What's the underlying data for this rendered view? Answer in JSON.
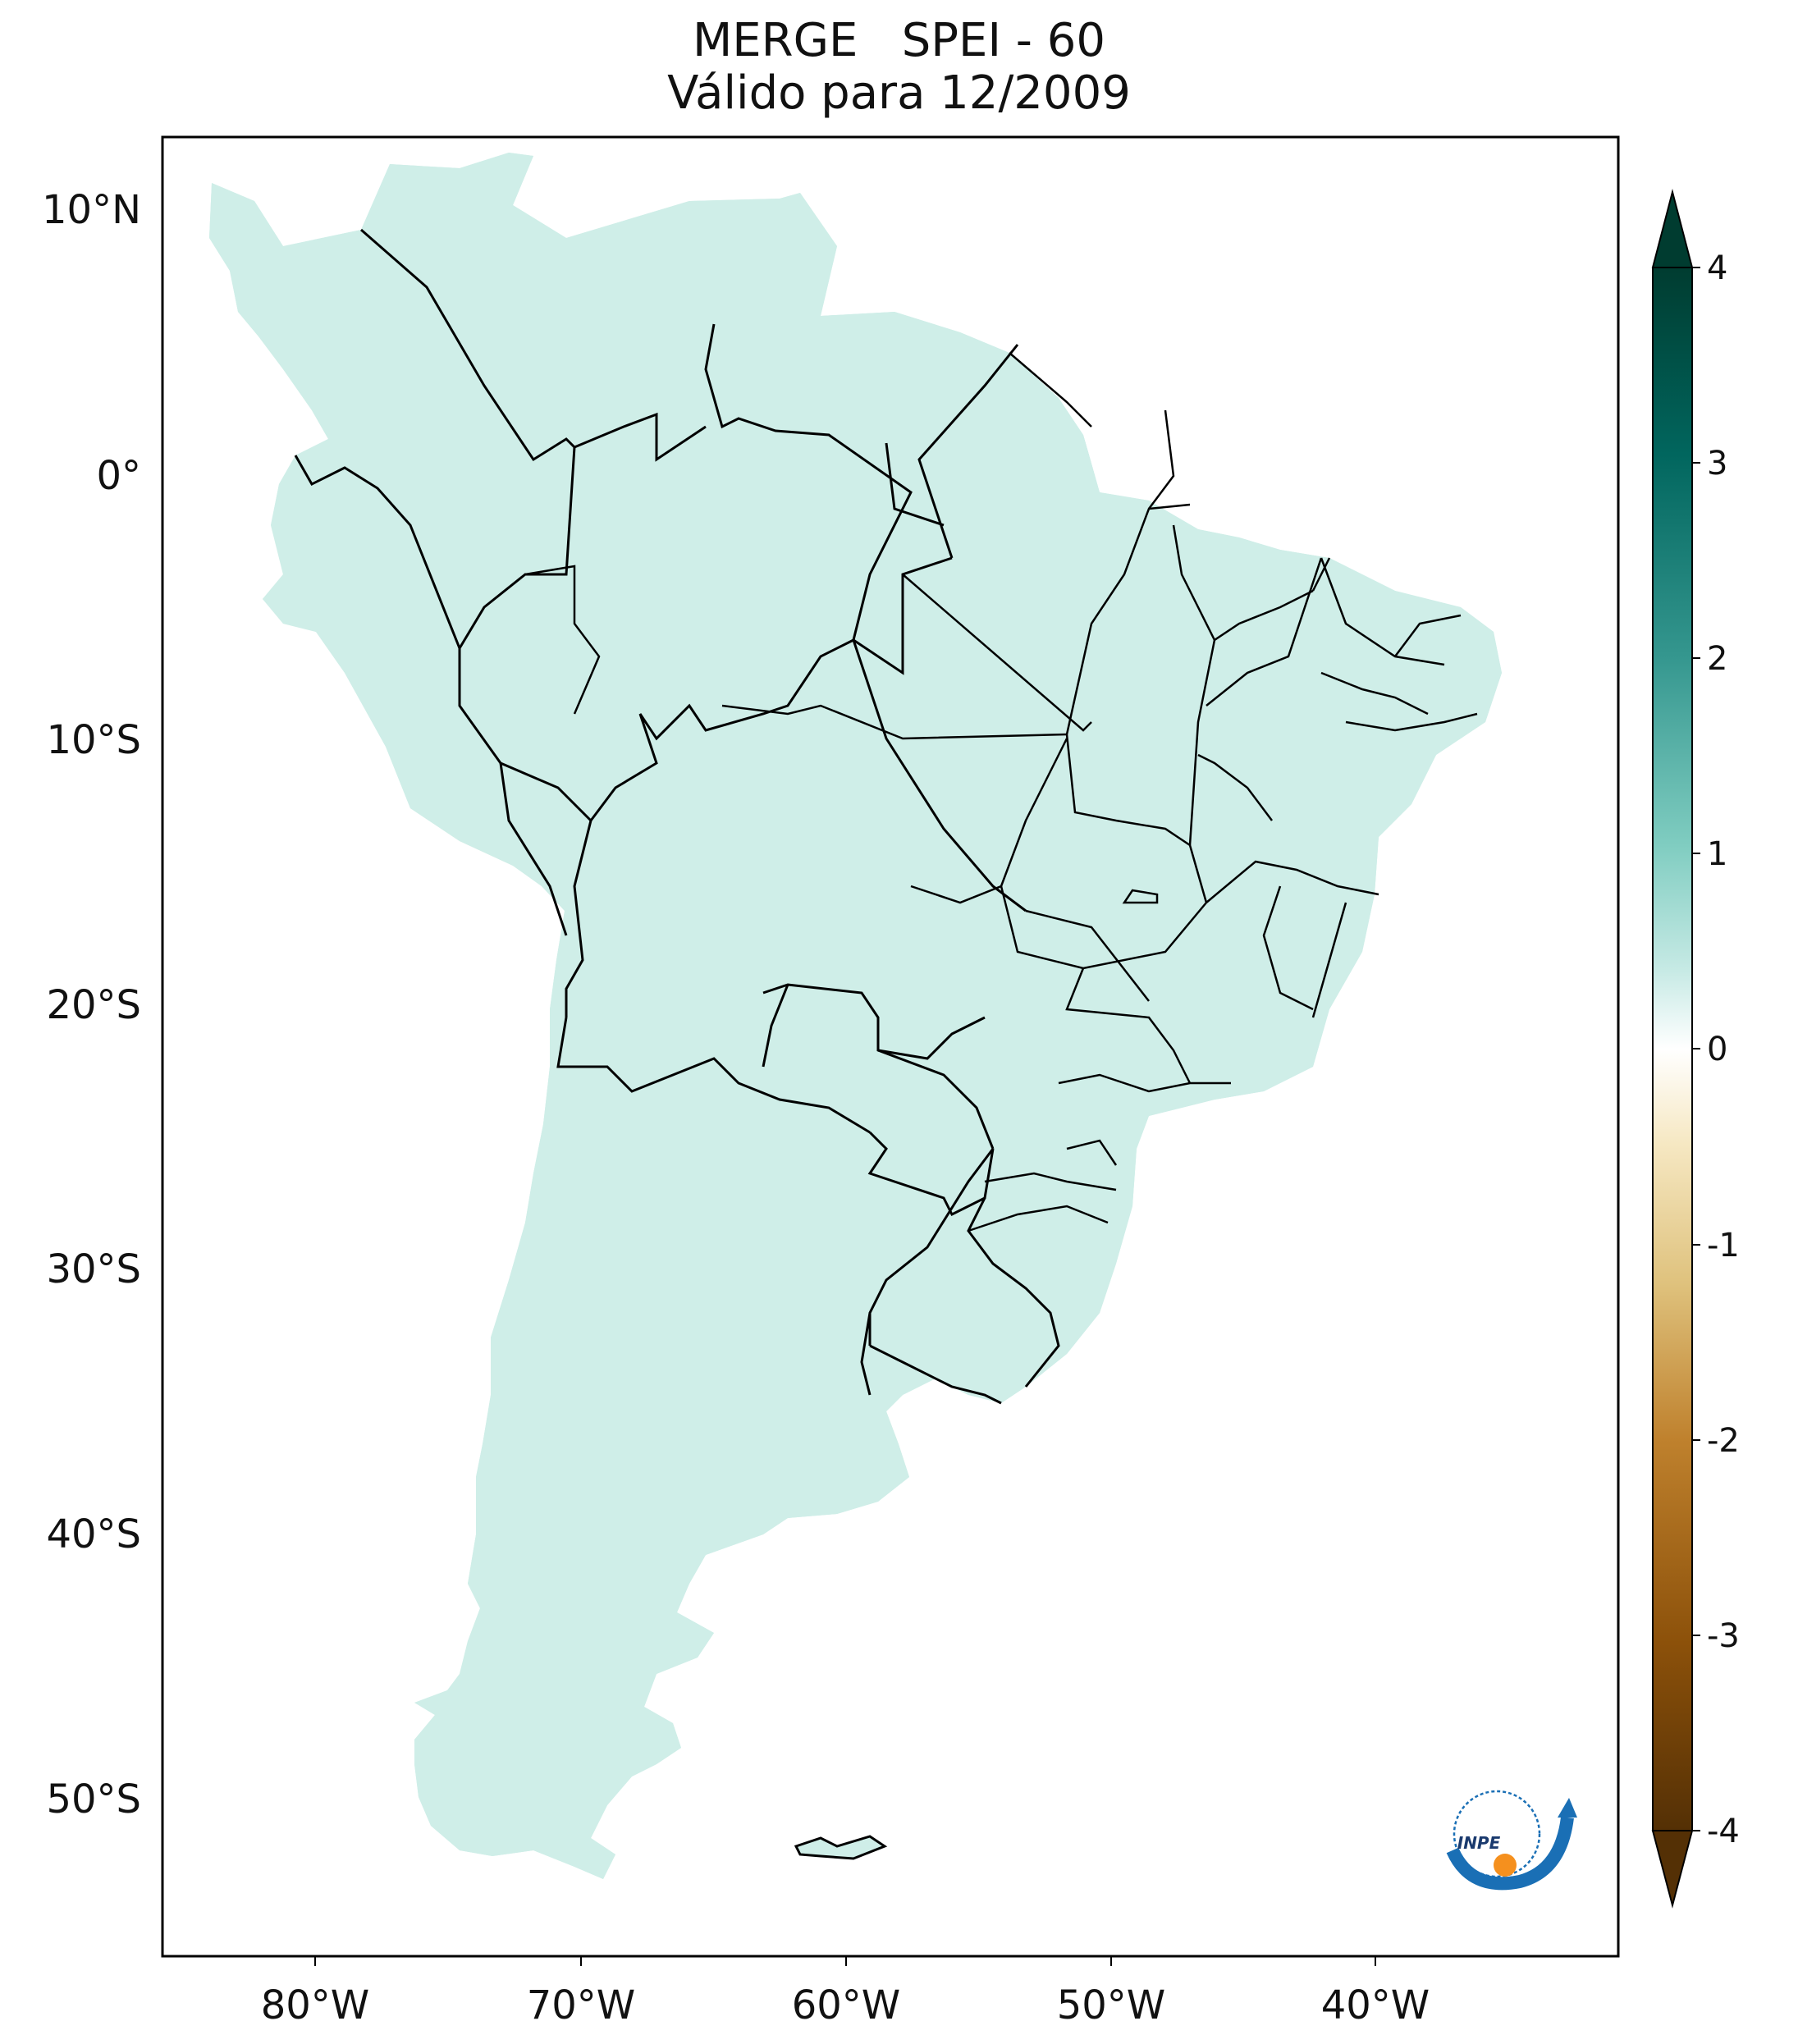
{
  "title": {
    "line1": "MERGE   SPEI - 60",
    "line2": "Válido para 12/2009"
  },
  "map": {
    "type": "choropleth-map",
    "region": "South America",
    "variable": "SPEI - 60",
    "source": "MERGE",
    "valid_date": "12/2009",
    "lon_ticks": [
      "80°W",
      "70°W",
      "60°W",
      "50°W",
      "40°W"
    ],
    "lat_ticks": [
      "10°N",
      "0°",
      "10°S",
      "20°S",
      "30°S",
      "40°S",
      "50°S"
    ],
    "lon_range": [
      -85,
      -30
    ],
    "lat_range": [
      -56,
      12.5
    ]
  },
  "colorbar": {
    "ticks": [
      "4",
      "3",
      "2",
      "1",
      "0",
      "-1",
      "-2",
      "-3",
      "-4"
    ],
    "range": [
      -4,
      4
    ],
    "extend": "both",
    "colormap": "BrBG",
    "stops": [
      "#543005",
      "#8c510a",
      "#bf812d",
      "#dfc27d",
      "#f6e8c3",
      "#ffffff",
      "#c7eae5",
      "#80cdc1",
      "#35978f",
      "#01665e",
      "#003c30"
    ]
  },
  "logo": {
    "text": "INPE",
    "colors": {
      "blue": "#1a6fb5",
      "orange": "#f5901e"
    }
  }
}
